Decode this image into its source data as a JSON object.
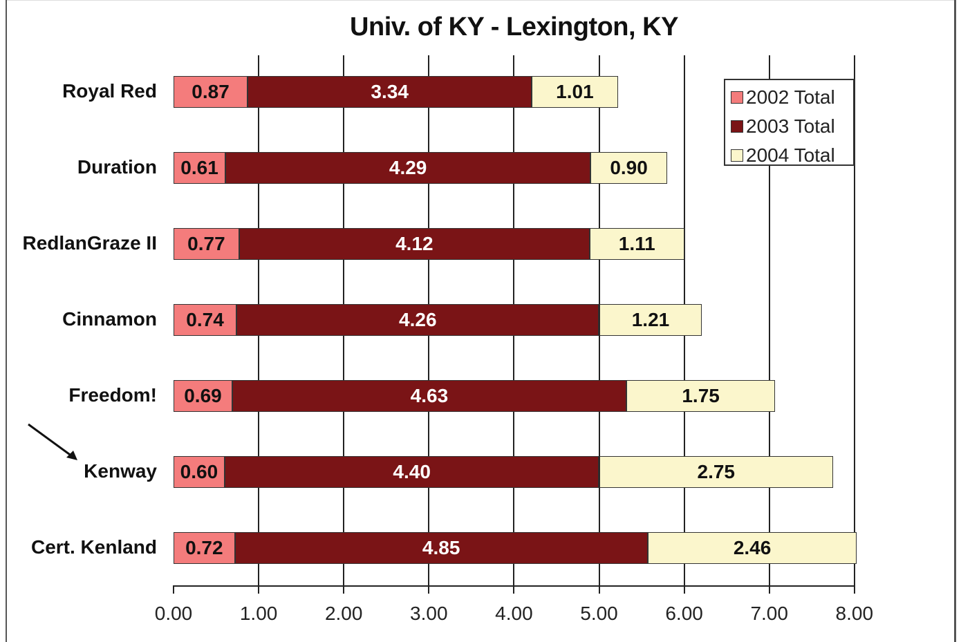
{
  "chart_data": {
    "type": "bar",
    "orientation": "horizontal",
    "stacked": true,
    "title": "Univ. of KY - Lexington, KY",
    "xlabel": "",
    "ylabel": "",
    "xlim": [
      0,
      8
    ],
    "x_ticks": [
      "0.00",
      "1.00",
      "2.00",
      "3.00",
      "4.00",
      "5.00",
      "6.00",
      "7.00",
      "8.00"
    ],
    "grid": "vertical gridlines at each major tick",
    "legend_position": "top-right inside plot",
    "categories": [
      "Royal Red",
      "Duration",
      "RedlanGraze II",
      "Cinnamon",
      "Freedom!",
      "Kenway",
      "Cert. Kenland"
    ],
    "series": [
      {
        "name": "2002 Total",
        "color": "#f47c7c",
        "values": [
          0.87,
          0.61,
          0.77,
          0.74,
          0.69,
          0.6,
          0.72
        ],
        "labels": [
          "0.87",
          "0.61",
          "0.77",
          "0.74",
          "0.69",
          "0.60",
          "0.72"
        ]
      },
      {
        "name": "2003 Total",
        "color": "#7a1416",
        "values": [
          3.34,
          4.29,
          4.12,
          4.26,
          4.63,
          4.4,
          4.85
        ],
        "labels": [
          "3.34",
          "4.29",
          "4.12",
          "4.26",
          "4.63",
          "4.40",
          "4.85"
        ]
      },
      {
        "name": "2004 Total",
        "color": "#fbf6cc",
        "values": [
          1.01,
          0.9,
          1.11,
          1.21,
          1.75,
          2.75,
          2.46
        ],
        "labels": [
          "1.01",
          "0.90",
          "1.11",
          "1.21",
          "1.75",
          "2.75",
          "2.46"
        ]
      }
    ],
    "annotations": [
      {
        "type": "arrow",
        "points_to": "Kenway"
      }
    ]
  },
  "legend": {
    "items": [
      {
        "label": "2002 Total",
        "color": "#f47c7c"
      },
      {
        "label": "2003 Total",
        "color": "#7a1416"
      },
      {
        "label": "2004 Total",
        "color": "#fbf6cc"
      }
    ]
  }
}
